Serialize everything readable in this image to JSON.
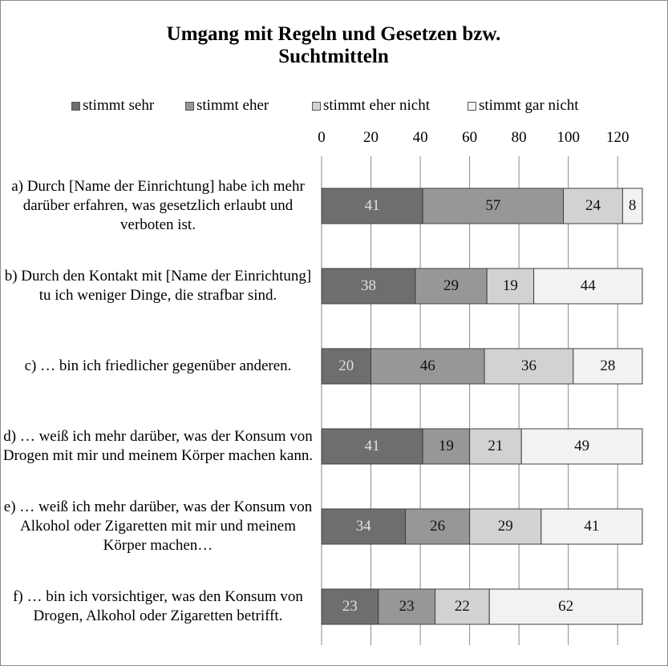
{
  "chart_data": {
    "type": "stacked_barh",
    "title": "Umgang mit Regeln und Gesetzen bzw. Suchtmitteln",
    "categories": [
      "a) Durch [Name der Einrichtung] habe ich mehr darüber erfahren, was gesetzlich erlaubt und verboten ist.",
      "b) Durch den Kontakt mit [Name der Einrichtung] tu ich weniger Dinge, die strafbar sind.",
      "c) … bin ich friedlicher gegenüber anderen.",
      "d) … weiß ich mehr darüber, was der Konsum von Drogen mit mir und meinem Körper machen kann.",
      "e) … weiß ich mehr darüber, was der Konsum von Alkohol oder Zigaretten mit mir und meinem Körper machen…",
      "f) … bin ich vorsichtiger, was den Konsum von Drogen, Alkohol oder Zigaretten betrifft."
    ],
    "series": [
      {
        "name": "stimmt sehr",
        "color": "#6e6e6e",
        "label_color": "#e0e0e0",
        "values": [
          41,
          38,
          20,
          41,
          34,
          23
        ]
      },
      {
        "name": "stimmt eher",
        "color": "#979797",
        "label_color": "#111111",
        "values": [
          57,
          29,
          46,
          19,
          26,
          23
        ]
      },
      {
        "name": "stimmt eher nicht",
        "color": "#d2d2d2",
        "label_color": "#111111",
        "values": [
          24,
          19,
          36,
          21,
          29,
          22
        ]
      },
      {
        "name": "stimmt gar nicht",
        "color": "#f2f2f2",
        "label_color": "#111111",
        "values": [
          8,
          44,
          28,
          49,
          41,
          62
        ]
      }
    ],
    "xlim": [
      0,
      130
    ],
    "xticks": [
      0,
      20,
      40,
      60,
      80,
      100,
      120
    ],
    "grid": true
  }
}
